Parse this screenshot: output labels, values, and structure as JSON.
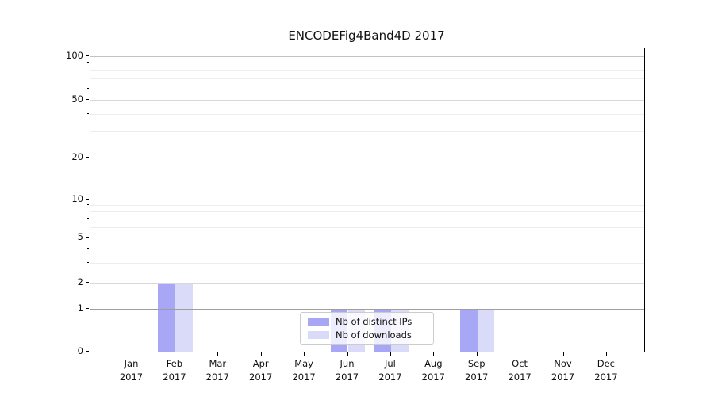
{
  "title": "ENCODEFig4Band4D 2017",
  "chart_data": {
    "type": "bar",
    "title": "ENCODEFig4Band4D 2017",
    "categories": [
      "Jan",
      "Feb",
      "Mar",
      "Apr",
      "May",
      "Jun",
      "Jul",
      "Aug",
      "Sep",
      "Oct",
      "Nov",
      "Dec"
    ],
    "x_tick_second_line": "2017",
    "series": [
      {
        "name": "Nb of distinct IPs",
        "color": "#a7a7f6",
        "values": [
          0,
          2,
          0,
          0,
          0,
          1,
          1,
          0,
          1,
          0,
          0,
          0
        ]
      },
      {
        "name": "Nb of downloads",
        "color": "#dadaf9",
        "values": [
          0,
          2,
          0,
          0,
          0,
          1,
          1,
          0,
          1,
          0,
          0,
          0
        ]
      }
    ],
    "y_axis": {
      "scale": "log-like (0 baseline, log spacing above)",
      "tick_labels": [
        "0",
        "1",
        "2",
        "5",
        "10",
        "20",
        "50",
        "100"
      ],
      "ticks": [
        0,
        1,
        2,
        5,
        10,
        20,
        50,
        100
      ],
      "minor_ticks": [
        3,
        4,
        6,
        7,
        8,
        9,
        30,
        40,
        60,
        70,
        80,
        90
      ],
      "range": [
        0,
        100
      ],
      "grid": "on"
    },
    "legend": {
      "position": "bottom-center-inside",
      "entries": [
        "Nb of distinct IPs",
        "Nb of downloads"
      ]
    },
    "colors": {
      "bar_distinct_ips": "#a7a7f6",
      "bar_downloads": "#dadaf9",
      "grid_major": "#9e9e9e",
      "grid_decade": "#c2c2c2",
      "grid_labeled_minor": "#d8d8d8",
      "grid_minor": "#ededed",
      "axis": "#000000"
    }
  }
}
